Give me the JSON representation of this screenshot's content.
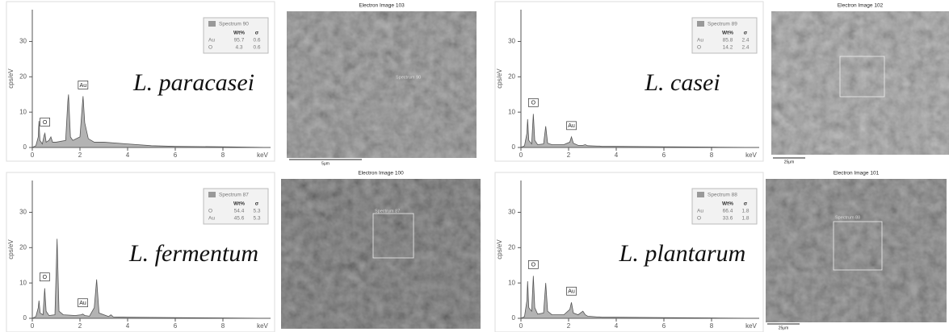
{
  "chart_data": [
    {
      "type": "area",
      "label": "L. paracasei",
      "xlabel": "keV",
      "ylabel": "cps/eV",
      "color": "#9a9a9a",
      "xlim": [
        0,
        10
      ],
      "xticks": [
        0,
        2,
        4,
        6,
        8
      ],
      "ylim": [
        0,
        39
      ],
      "yticks": [
        0,
        10,
        20,
        30
      ],
      "x": [
        0,
        0.15,
        0.25,
        0.28,
        0.32,
        0.42,
        0.5,
        0.53,
        0.58,
        0.7,
        0.78,
        0.85,
        1.0,
        1.4,
        1.49,
        1.52,
        1.6,
        1.7,
        2.0,
        2.1,
        2.13,
        2.2,
        2.35,
        2.6,
        3.0,
        4.0,
        5.0,
        6.0,
        8.0,
        10.0
      ],
      "values": [
        0,
        0.5,
        3,
        7.5,
        2,
        1,
        3.5,
        4,
        1.5,
        2,
        3,
        1.5,
        1.5,
        2,
        13,
        15,
        3,
        2,
        3,
        12,
        14.5,
        7,
        2.5,
        1.5,
        1.5,
        1,
        0.5,
        0.3,
        0.2,
        0
      ],
      "annotations": [
        {
          "text": "O",
          "x": 0.53
        },
        {
          "text": "Au",
          "x": 2.13
        }
      ],
      "legend_table": {
        "title": "Spectrum 90",
        "header": [
          "Wt%",
          "σ"
        ],
        "rows": [
          [
            "Au",
            "95.7",
            "0.6"
          ],
          [
            "O",
            "4.3",
            "0.6"
          ]
        ]
      }
    },
    {
      "type": "area",
      "label": "L. casei",
      "xlabel": "keV",
      "ylabel": "cps/eV",
      "color": "#9a9a9a",
      "xlim": [
        0,
        10
      ],
      "xticks": [
        0,
        2,
        4,
        6,
        8
      ],
      "ylim": [
        0,
        39
      ],
      "yticks": [
        0,
        10,
        20,
        30
      ],
      "x": [
        0,
        0.15,
        0.25,
        0.28,
        0.33,
        0.45,
        0.52,
        0.58,
        0.7,
        0.95,
        1.04,
        1.12,
        1.3,
        1.8,
        2.05,
        2.12,
        2.2,
        2.4,
        2.6,
        2.7,
        2.8,
        3.2,
        3.3,
        3.4,
        4,
        6,
        8,
        10
      ],
      "values": [
        0,
        0.5,
        4,
        8,
        2,
        1,
        9.5,
        2,
        0.8,
        1,
        6,
        1.2,
        0.8,
        0.8,
        1.5,
        3,
        1.2,
        0.6,
        0.6,
        0.8,
        0.5,
        0.4,
        0.4,
        0.3,
        0.3,
        0.2,
        0.1,
        0
      ],
      "annotations": [
        {
          "text": "O",
          "x": 0.52
        },
        {
          "text": "Au",
          "x": 2.12
        }
      ],
      "legend_table": {
        "title": "Spectrum 89",
        "header": [
          "Wt%",
          "σ"
        ],
        "rows": [
          [
            "Au",
            "85.8",
            "2.4"
          ],
          [
            "O",
            "14.2",
            "2.4"
          ]
        ]
      }
    },
    {
      "type": "area",
      "label": "L. fermentum",
      "xlabel": "keV",
      "ylabel": "cps/eV",
      "color": "#9a9a9a",
      "xlim": [
        0,
        10
      ],
      "xticks": [
        0,
        2,
        4,
        6,
        8
      ],
      "ylim": [
        0,
        39
      ],
      "yticks": [
        0,
        10,
        20,
        30
      ],
      "x": [
        0,
        0.15,
        0.25,
        0.28,
        0.33,
        0.45,
        0.52,
        0.58,
        0.7,
        0.95,
        1.04,
        1.12,
        1.3,
        1.8,
        2.05,
        2.12,
        2.2,
        2.4,
        2.6,
        2.7,
        2.8,
        3.2,
        3.3,
        3.4,
        4,
        6,
        8,
        10
      ],
      "values": [
        0,
        0.5,
        3,
        5,
        1.5,
        1,
        8.5,
        2,
        0.8,
        1,
        22.5,
        2,
        1,
        0.8,
        1,
        1.2,
        0.8,
        0.6,
        3,
        11,
        1.5,
        0.5,
        1,
        0.4,
        0.3,
        0.2,
        0.1,
        0
      ],
      "annotations": [
        {
          "text": "O",
          "x": 0.52
        },
        {
          "text": "Au",
          "x": 2.12
        }
      ],
      "legend_table": {
        "title": "Spectrum 87",
        "header": [
          "Wt%",
          "σ"
        ],
        "rows": [
          [
            "O",
            "54.4",
            "5.3"
          ],
          [
            "Au",
            "45.6",
            "5.3"
          ]
        ]
      }
    },
    {
      "type": "area",
      "label": "L. plantarum",
      "xlabel": "keV",
      "ylabel": "cps/eV",
      "color": "#9a9a9a",
      "xlim": [
        0,
        10
      ],
      "xticks": [
        0,
        2,
        4,
        6,
        8
      ],
      "ylim": [
        0,
        39
      ],
      "yticks": [
        0,
        10,
        20,
        30
      ],
      "x": [
        0,
        0.15,
        0.25,
        0.28,
        0.33,
        0.45,
        0.52,
        0.58,
        0.7,
        0.95,
        1.04,
        1.12,
        1.3,
        1.8,
        2.05,
        2.12,
        2.2,
        2.4,
        2.6,
        2.7,
        2.8,
        3.2,
        3.3,
        3.4,
        4,
        6,
        8,
        10
      ],
      "values": [
        0,
        0.5,
        5,
        10.5,
        3,
        2,
        12,
        3,
        1.2,
        1.5,
        10,
        2,
        1,
        1,
        2.5,
        4.5,
        1.5,
        1,
        2,
        1,
        0.6,
        0.4,
        0.4,
        0.3,
        0.3,
        0.2,
        0.1,
        0
      ],
      "annotations": [
        {
          "text": "O",
          "x": 0.52
        },
        {
          "text": "Au",
          "x": 2.12
        }
      ],
      "legend_table": {
        "title": "Spectrum 88",
        "header": [
          "Wt%",
          "σ"
        ],
        "rows": [
          [
            "Au",
            "66.4",
            "1.8"
          ],
          [
            "O",
            "33.6",
            "1.8"
          ]
        ]
      }
    }
  ],
  "images": [
    {
      "title": "Electron Image 103",
      "spectrum": "Spectrum 90",
      "scale": "5μm"
    },
    {
      "title": "Electron Image 102",
      "scale": "25μm"
    },
    {
      "title": "Electron Image 100",
      "spectrum": "Spectrum 87"
    },
    {
      "title": "Electron Image 101",
      "spectrum": "Spectrum 88",
      "scale": "25μm"
    }
  ]
}
